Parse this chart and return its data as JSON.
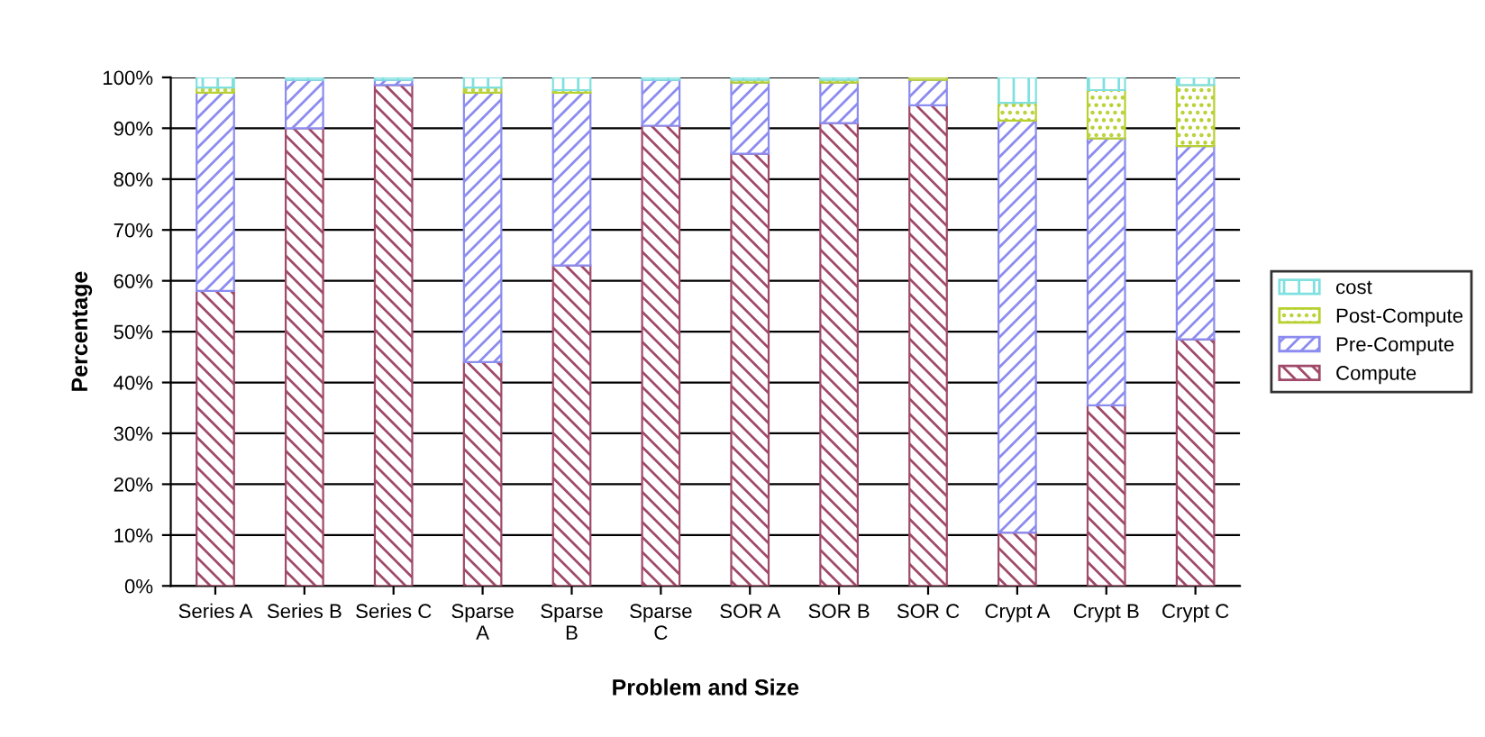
{
  "chart_data": {
    "type": "bar",
    "stacked": true,
    "xlabel": "Problem and Size",
    "ylabel": "Percentage",
    "categories": [
      "Series A",
      "Series B",
      "Series C",
      "Sparse\nA",
      "Sparse\nB",
      "Sparse\nC",
      "SOR A",
      "SOR B",
      "SOR C",
      "Crypt A",
      "Crypt B",
      "Crypt C"
    ],
    "series": [
      {
        "name": "Compute",
        "color": "#a04a6a",
        "values": [
          58,
          90,
          98.5,
          44,
          63,
          90.5,
          85,
          91,
          94.5,
          10.5,
          35.5,
          48.5
        ]
      },
      {
        "name": "Pre-Compute",
        "color": "#8c8cf0",
        "values": [
          39,
          9.5,
          1,
          53,
          34,
          9,
          14,
          8,
          5,
          81,
          52.5,
          38
        ]
      },
      {
        "name": "Post-Compute",
        "color": "#b8d030",
        "values": [
          1,
          0,
          0,
          1,
          0.5,
          0,
          0.5,
          0.5,
          0.5,
          3.5,
          9.5,
          12
        ]
      },
      {
        "name": "cost",
        "color": "#80e0e0",
        "values": [
          2,
          0.5,
          0.5,
          2,
          2.5,
          0.5,
          0.5,
          0.5,
          0,
          5,
          2.5,
          1.5
        ]
      }
    ],
    "ylim": [
      0,
      100
    ],
    "yticks": [
      {
        "value": 0,
        "label": "0%"
      },
      {
        "value": 10,
        "label": "10%"
      },
      {
        "value": 20,
        "label": "20%"
      },
      {
        "value": 30,
        "label": "30%"
      },
      {
        "value": 40,
        "label": "40%"
      },
      {
        "value": 50,
        "label": "50%"
      },
      {
        "value": 60,
        "label": "60%"
      },
      {
        "value": 70,
        "label": "70%"
      },
      {
        "value": 80,
        "label": "80%"
      },
      {
        "value": 90,
        "label": "90%"
      },
      {
        "value": 100,
        "label": "100%"
      }
    ],
    "grid": "y",
    "legend": "right"
  }
}
